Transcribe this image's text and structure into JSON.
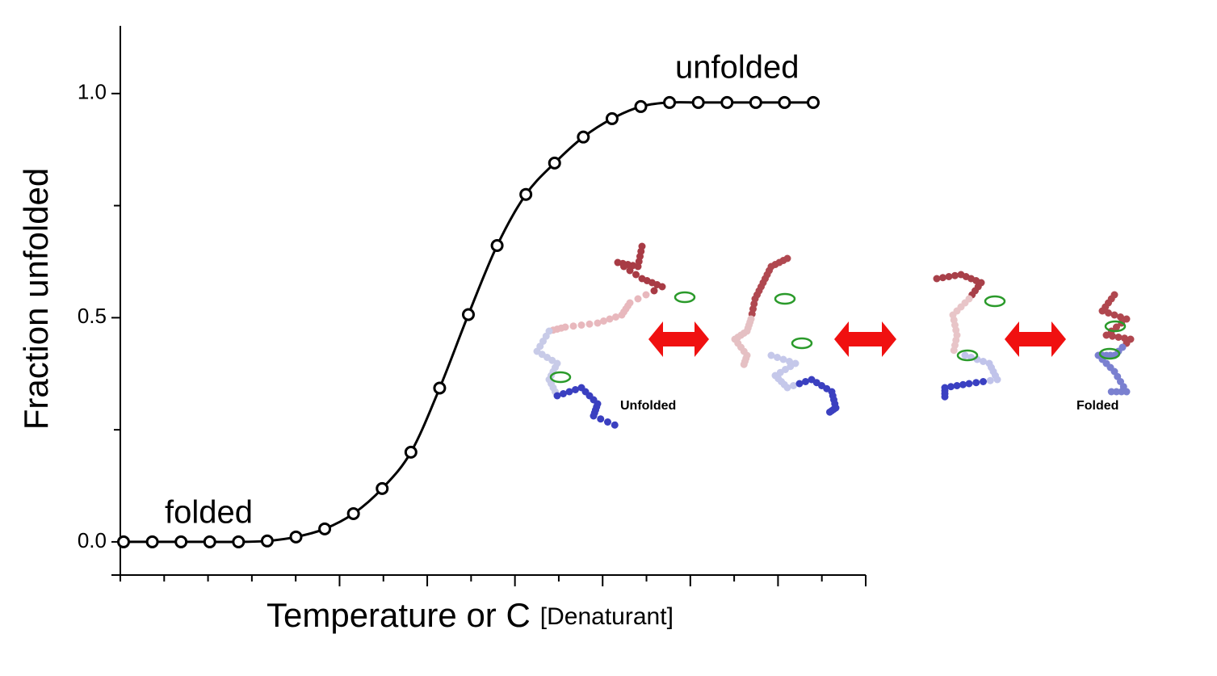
{
  "chart_data": {
    "type": "line",
    "y_label": "Fraction unfolded",
    "x_label": "Temperature or C",
    "x_label_sub": "[Denaturant]",
    "annotations": [
      "folded",
      "unfolded"
    ],
    "image_labels": [
      "Unfolded",
      "Folded"
    ],
    "categories": [
      null,
      null,
      null,
      null,
      null,
      null,
      null,
      null,
      null,
      null,
      null,
      null,
      null,
      null,
      null,
      null,
      null,
      null,
      null,
      null,
      null,
      null,
      null,
      null,
      null
    ],
    "values": [
      0,
      0,
      0,
      0,
      0,
      0.002,
      0.011,
      0.029,
      0.063,
      0.119,
      0.2,
      0.343,
      0.507,
      0.661,
      0.775,
      0.845,
      0.903,
      0.944,
      0.971,
      0.98,
      0.98,
      0.98,
      0.98,
      0.98,
      0.98
    ],
    "color": "#000000",
    "ylim": [
      -0.074,
      1.151
    ],
    "yticks": [
      {
        "value": 0,
        "label": "0.0"
      },
      {
        "value": 0.5,
        "label": "0.5"
      },
      {
        "value": 1,
        "label": "1.0"
      }
    ]
  }
}
